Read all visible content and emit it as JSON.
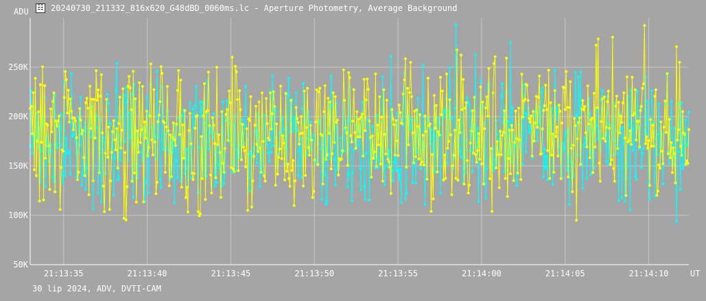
{
  "window": {
    "title": "20240730_211332_816x620_G48dBD_0060ms.lc - Aperture Photometry, Average Background",
    "icon": "lightcurve-app-icon"
  },
  "footer": {
    "text": "30 lip 2024, ADV, DVTI-CAM"
  },
  "colors": {
    "background": "#a5a5a5",
    "grid": "#c8c8c8",
    "text": "#ffffff",
    "series1": "#00ffff",
    "series2": "#ffff00"
  },
  "chart_data": {
    "type": "line",
    "title": "",
    "ylabel": "ADU",
    "xlabel": "UT",
    "ylim": [
      50000,
      300000
    ],
    "xlim_seconds": [
      33.0,
      72.4
    ],
    "x_ticks": [
      "21:13:35",
      "21:13:40",
      "21:13:45",
      "21:13:50",
      "21:13:55",
      "21:14:00",
      "21:14:05",
      "21:14:10"
    ],
    "y_ticks": [
      "50K",
      "100K",
      "150K",
      "200K",
      "250K"
    ],
    "grid": true,
    "markers": true,
    "series": [
      {
        "color": "#00ffff",
        "mean": 175000,
        "spread": 60000,
        "points": 640,
        "seed": 71
      },
      {
        "color": "#ffff00",
        "mean": 185000,
        "spread": 70000,
        "points": 640,
        "seed": 29
      }
    ]
  }
}
